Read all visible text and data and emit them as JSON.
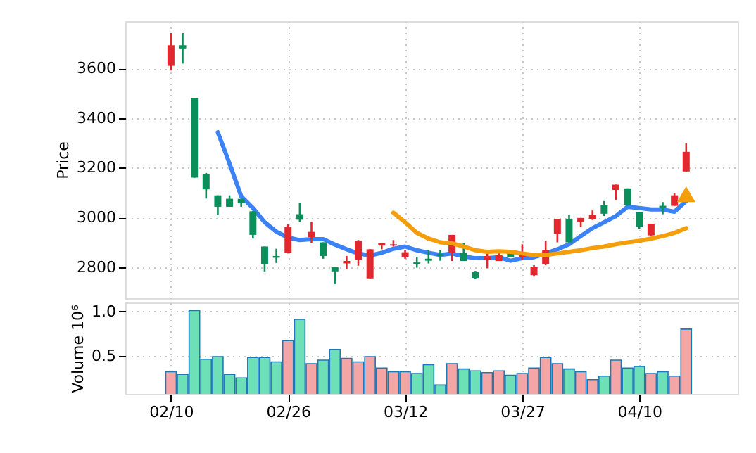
{
  "chart_data": [
    {
      "type": "candlestick",
      "ylabel": "Price",
      "tick_labels": "y",
      "grid": true,
      "ylim": [
        2675,
        3790
      ],
      "yticks": [
        2800,
        3000,
        3200,
        3400,
        3600
      ],
      "ohlc": [
        [
          3610,
          3742,
          3591,
          3693
        ],
        [
          3693,
          3742,
          3619,
          3680
        ],
        [
          3481,
          3481,
          3160,
          3160
        ],
        [
          3174,
          3179,
          3076,
          3113
        ],
        [
          3089,
          3089,
          3009,
          3043
        ],
        [
          3075,
          3089,
          3043,
          3043
        ],
        [
          3075,
          3075,
          3043,
          3057
        ],
        [
          3025,
          3025,
          2915,
          2930
        ],
        [
          2883,
          2883,
          2783,
          2811
        ],
        [
          2845,
          2874,
          2817,
          2838
        ],
        [
          2858,
          2972,
          2855,
          2962
        ],
        [
          3013,
          3060,
          2981,
          2991
        ],
        [
          2921,
          2981,
          2896,
          2942
        ],
        [
          2900,
          2900,
          2834,
          2845
        ],
        [
          2800,
          2800,
          2732,
          2783
        ],
        [
          2815,
          2845,
          2792,
          2825
        ],
        [
          2830,
          2909,
          2806,
          2906
        ],
        [
          2755,
          2872,
          2755,
          2872
        ],
        [
          2887,
          2896,
          2872,
          2896
        ],
        [
          2887,
          2909,
          2883,
          2892
        ],
        [
          2842,
          2868,
          2834,
          2860
        ],
        [
          2819,
          2842,
          2798,
          2811
        ],
        [
          2834,
          2868,
          2815,
          2826
        ],
        [
          2853,
          2868,
          2826,
          2845
        ],
        [
          2858,
          2930,
          2825,
          2930
        ],
        [
          2858,
          2896,
          2825,
          2825
        ],
        [
          2781,
          2785,
          2753,
          2757
        ],
        [
          2830,
          2858,
          2796,
          2845
        ],
        [
          2825,
          2868,
          2825,
          2849
        ],
        [
          2858,
          2868,
          2840,
          2840
        ],
        [
          2840,
          2892,
          2830,
          2849
        ],
        [
          2768,
          2808,
          2762,
          2800
        ],
        [
          2811,
          2906,
          2808,
          2868
        ],
        [
          2934,
          2994,
          2900,
          2994
        ],
        [
          2994,
          3009,
          2900,
          2900
        ],
        [
          2981,
          2998,
          2962,
          2998
        ],
        [
          2994,
          3028,
          2990,
          3011
        ],
        [
          3051,
          3066,
          3006,
          3015
        ],
        [
          3111,
          3132,
          3070,
          3132
        ],
        [
          3117,
          3117,
          3047,
          3051
        ],
        [
          3021,
          3021,
          2953,
          2962
        ],
        [
          2928,
          2975,
          2925,
          2975
        ],
        [
          3047,
          3062,
          3013,
          3038
        ],
        [
          3047,
          3098,
          3047,
          3089
        ],
        [
          3185,
          3300,
          3185,
          3264
        ]
      ],
      "colors": [
        "#e0282e",
        "#0a8f5a",
        "#0a8f5a",
        "#0a8f5a",
        "#0a8f5a",
        "#0a8f5a",
        "#0a8f5a",
        "#0a8f5a",
        "#0a8f5a",
        "#0a8f5a",
        "#e0282e",
        "#0a8f5a",
        "#e0282e",
        "#0a8f5a",
        "#0a8f5a",
        "#e0282e",
        "#e0282e",
        "#e0282e",
        "#e0282e",
        "#e0282e",
        "#e0282e",
        "#0a8f5a",
        "#0a8f5a",
        "#0a8f5a",
        "#e0282e",
        "#0a8f5a",
        "#0a8f5a",
        "#e0282e",
        "#e0282e",
        "#0a8f5a",
        "#e0282e",
        "#e0282e",
        "#e0282e",
        "#e0282e",
        "#0a8f5a",
        "#e0282e",
        "#e0282e",
        "#0a8f5a",
        "#e0282e",
        "#0a8f5a",
        "#0a8f5a",
        "#e0282e",
        "#0a8f5a",
        "#e0282e",
        "#e0282e"
      ],
      "series": [
        {
          "type": "line",
          "color": "#3b82f6",
          "values": [
            null,
            null,
            null,
            null,
            3343,
            3217,
            3085,
            3038,
            2981,
            2943,
            2919,
            2909,
            2913,
            2913,
            2891,
            2872,
            2855,
            2847,
            2858,
            2874,
            2883,
            2868,
            2858,
            2849,
            2855,
            2843,
            2836,
            2836,
            2840,
            2826,
            2836,
            2840,
            2855,
            2872,
            2892,
            2925,
            2957,
            2981,
            3006,
            3043,
            3038,
            3032,
            3032,
            3023,
            3066
          ]
        },
        {
          "type": "line",
          "color": "#f59e0b",
          "values": [
            null,
            null,
            null,
            null,
            null,
            null,
            null,
            null,
            null,
            null,
            null,
            null,
            null,
            null,
            null,
            null,
            null,
            null,
            null,
            3019,
            2981,
            2938,
            2915,
            2900,
            2896,
            2883,
            2868,
            2862,
            2864,
            2862,
            2855,
            2849,
            2849,
            2855,
            2862,
            2868,
            2877,
            2883,
            2892,
            2900,
            2906,
            2915,
            2925,
            2938,
            2957
          ]
        },
        {
          "type": "scatter",
          "marker": "triangle",
          "color": "#f59e0b",
          "values": [
            null,
            null,
            null,
            null,
            null,
            null,
            null,
            null,
            null,
            null,
            null,
            null,
            null,
            null,
            null,
            null,
            null,
            null,
            null,
            null,
            null,
            null,
            null,
            null,
            null,
            null,
            null,
            null,
            null,
            null,
            null,
            null,
            null,
            null,
            null,
            null,
            null,
            null,
            null,
            null,
            null,
            null,
            null,
            null,
            3094
          ]
        }
      ]
    },
    {
      "type": "bar",
      "ylabel": "Volume  10⁶",
      "grid": true,
      "categories": [
        "02/10",
        null,
        null,
        null,
        null,
        null,
        null,
        null,
        null,
        null,
        "02/26",
        null,
        null,
        null,
        null,
        null,
        null,
        null,
        null,
        null,
        "03/12",
        null,
        null,
        null,
        null,
        null,
        null,
        null,
        null,
        null,
        "03/27",
        null,
        null,
        null,
        null,
        null,
        null,
        null,
        null,
        null,
        "04/10",
        null,
        null,
        null,
        null
      ],
      "ylim": [
        0.07,
        1.1
      ],
      "yticks": [
        0.5,
        {
          "value": 1.0,
          "label": "1.0"
        }
      ],
      "values": [
        0.32,
        0.29,
        1.01,
        0.46,
        0.49,
        0.29,
        0.25,
        0.48,
        0.48,
        0.43,
        0.67,
        0.91,
        0.41,
        0.45,
        0.57,
        0.47,
        0.43,
        0.49,
        0.36,
        0.32,
        0.32,
        0.3,
        0.4,
        0.17,
        0.41,
        0.35,
        0.33,
        0.31,
        0.33,
        0.28,
        0.3,
        0.36,
        0.48,
        0.41,
        0.35,
        0.32,
        0.23,
        0.27,
        0.45,
        0.36,
        0.38,
        0.3,
        0.32,
        0.27,
        0.8
      ],
      "colors": [
        "#f4a6a6",
        "#6ee0b8",
        "#6ee0b8",
        "#6ee0b8",
        "#6ee0b8",
        "#6ee0b8",
        "#6ee0b8",
        "#6ee0b8",
        "#6ee0b8",
        "#6ee0b8",
        "#f4a6a6",
        "#6ee0b8",
        "#f4a6a6",
        "#6ee0b8",
        "#6ee0b8",
        "#f4a6a6",
        "#f4a6a6",
        "#f4a6a6",
        "#f4a6a6",
        "#f4a6a6",
        "#f4a6a6",
        "#6ee0b8",
        "#6ee0b8",
        "#6ee0b8",
        "#f4a6a6",
        "#6ee0b8",
        "#6ee0b8",
        "#f4a6a6",
        "#f4a6a6",
        "#6ee0b8",
        "#f4a6a6",
        "#f4a6a6",
        "#f4a6a6",
        "#f4a6a6",
        "#6ee0b8",
        "#f4a6a6",
        "#f4a6a6",
        "#6ee0b8",
        "#f4a6a6",
        "#6ee0b8",
        "#6ee0b8",
        "#f4a6a6",
        "#6ee0b8",
        "#f4a6a6",
        "#f4a6a6"
      ]
    }
  ]
}
